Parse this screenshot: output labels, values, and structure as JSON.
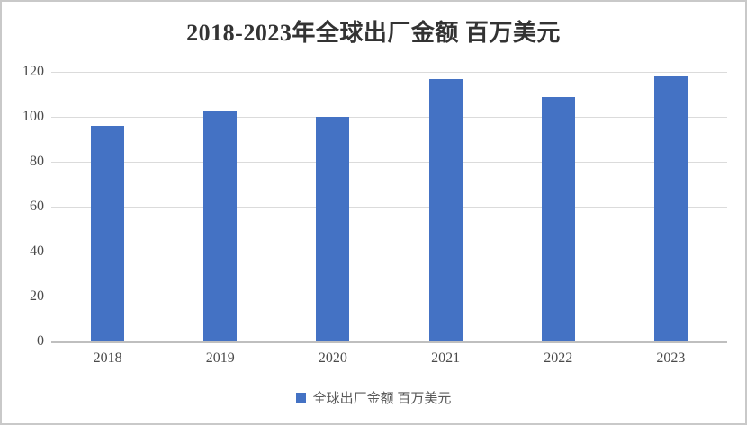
{
  "chart_data": {
    "type": "bar",
    "title": "2018-2023年全球出厂金额  百万美元",
    "categories": [
      "2018",
      "2019",
      "2020",
      "2021",
      "2022",
      "2023"
    ],
    "series": [
      {
        "name": "全球出厂金额 百万美元",
        "values": [
          96,
          103,
          100,
          117,
          109,
          118
        ]
      }
    ],
    "legend": "全球出厂金额 百万美元",
    "legend_position": "bottom",
    "xlabel": "",
    "ylabel": "",
    "ylim": [
      0,
      120
    ],
    "yticks": [
      0,
      20,
      40,
      60,
      80,
      100,
      120
    ],
    "grid": true,
    "colors": {
      "bar": "#4472C4",
      "gridline": "#DBDBDB",
      "axis_line": "#BFBFBF",
      "title_text": "#333333",
      "tick_text": "#4A4A4A",
      "legend_text": "#595959",
      "background": "#FFFFFF",
      "frame_border": "#C9C9C9"
    }
  }
}
